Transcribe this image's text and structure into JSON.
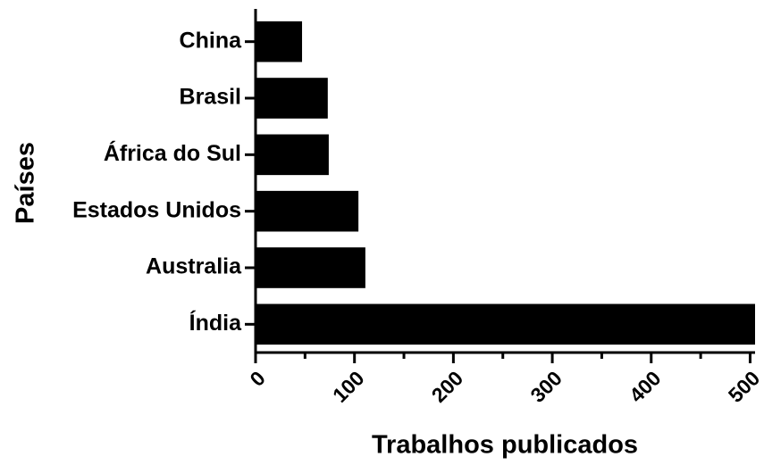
{
  "chart_data": {
    "type": "hbar",
    "xlabel": "Trabalhos publicados",
    "ylabel": "Países",
    "categories": [
      "China",
      "Brasil",
      "África do Sul",
      "Estados Unidos",
      "Australia",
      "Índia"
    ],
    "values": [
      47,
      73,
      74,
      104,
      111,
      505
    ],
    "color": "#000000",
    "xlim": [
      0,
      505
    ],
    "xticks": [
      0,
      100,
      200,
      300,
      400,
      500
    ],
    "xminorticks": [
      50,
      150,
      250,
      350,
      450
    ],
    "grid": false
  }
}
